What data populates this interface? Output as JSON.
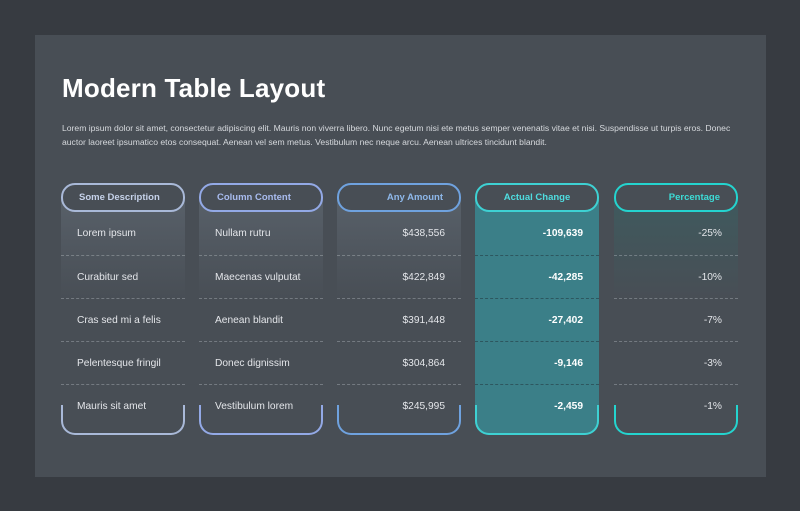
{
  "title": "Modern Table Layout",
  "description": "Lorem ipsum dolor sit amet, consectetur adipiscing elit. Mauris non viverra libero. Nunc egetum nisi ete metus semper venenatis vitae et nisi. Suspendisse ut turpis eros. Donec auctor laoreet ipsumatico etos consequat. Aenean vel sem metus. Vestibulum nec neque arcu. Aenean ultrices tincidunt blandit.",
  "colors": {
    "panel": "#484e55",
    "outer": "#373b41",
    "col1": "#a9b9d8",
    "col2": "#93a9e6",
    "col3": "#6fa2df",
    "col4": "#3ed1d3",
    "col5": "#24d4cf",
    "highlight_fill": "#3b7f88"
  },
  "columns": [
    {
      "header": "Some Description",
      "cells": [
        "Lorem ipsum",
        "Curabitur sed",
        "Cras sed mi a felis",
        "Pelentesque fringil",
        "Mauris sit amet"
      ]
    },
    {
      "header": "Column Content",
      "cells": [
        "Nullam rutru",
        "Maecenas vulputat",
        "Aenean blandit",
        "Donec dignissim",
        "Vestibulum lorem"
      ]
    },
    {
      "header": "Any Amount",
      "cells": [
        "$438,556",
        "$422,849",
        "$391,448",
        "$304,864",
        "$245,995"
      ]
    },
    {
      "header": "Actual Change",
      "cells": [
        "-109,639",
        "-42,285",
        "-27,402",
        "-9,146",
        "-2,459"
      ]
    },
    {
      "header": "Percentage",
      "cells": [
        "-25%",
        "-10%",
        "-7%",
        "-3%",
        "-1%"
      ]
    }
  ]
}
